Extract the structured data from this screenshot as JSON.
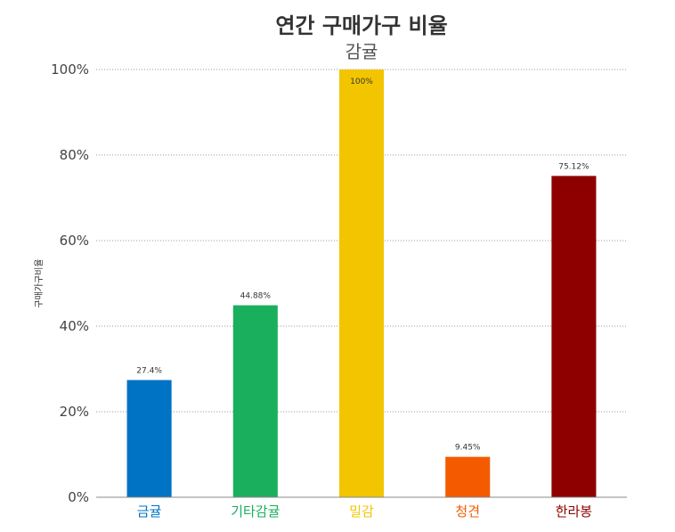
{
  "chart_data": {
    "type": "bar",
    "title": "연간 구매가구 비율",
    "subtitle": "감귤",
    "ylabel": "구매가구비율",
    "xlabel": "",
    "ylim": [
      0,
      100
    ],
    "y_ticks": [
      "0%",
      "20%",
      "40%",
      "60%",
      "80%",
      "100%"
    ],
    "y_tick_values": [
      0,
      20,
      40,
      60,
      80,
      100
    ],
    "grid": true,
    "legend": "none",
    "categories": [
      "금귤",
      "기타감귤",
      "밀감",
      "청견",
      "한라봉"
    ],
    "values": [
      27.4,
      44.88,
      100,
      9.45,
      75.12
    ],
    "data_labels": [
      "27.4%",
      "44.88%",
      "100%",
      "9.45%",
      "75.12%"
    ],
    "colors": [
      "#0073c4",
      "#1aaf5d",
      "#f2c500",
      "#f45b00",
      "#8e0000"
    ]
  }
}
